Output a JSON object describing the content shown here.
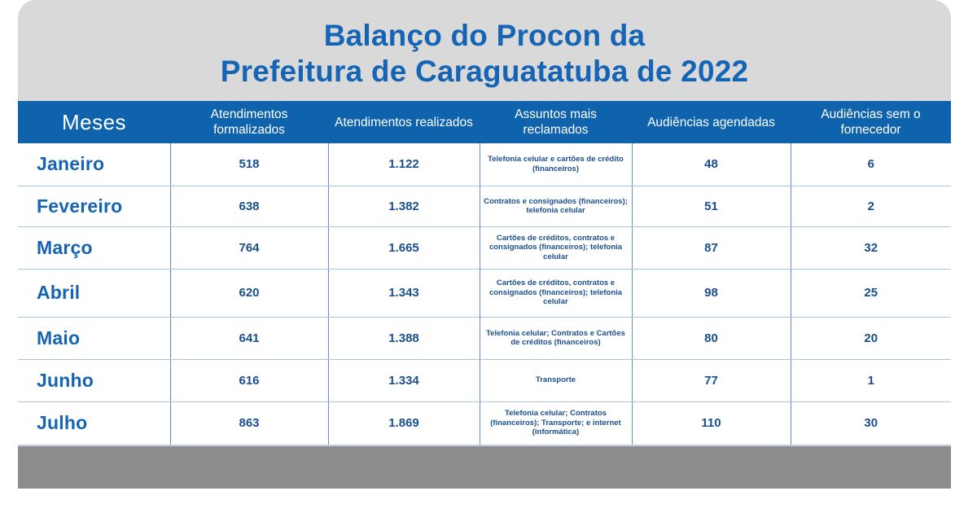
{
  "title": {
    "line1": "Balanço do Procon da",
    "line2": "Prefeitura de Caraguatatuba de 2022"
  },
  "chart_data": {
    "type": "table",
    "columns": [
      "Meses",
      "Atendimentos formalizados",
      "Atendimentos realizados",
      "Assuntos mais reclamados",
      "Audiências agendadas",
      "Audiências sem o fornecedor"
    ],
    "rows": [
      {
        "mes": "Janeiro",
        "formalizados": "518",
        "realizados": "1.122",
        "assuntos": "Telefonia celular e cartões de crédito (financeiros)",
        "agendadas": "48",
        "sem_fornecedor": "6"
      },
      {
        "mes": "Fevereiro",
        "formalizados": "638",
        "realizados": "1.382",
        "assuntos": "Contratos e consignados (financeiros); telefonia celular",
        "agendadas": "51",
        "sem_fornecedor": "2"
      },
      {
        "mes": "Março",
        "formalizados": "764",
        "realizados": "1.665",
        "assuntos": "Cartões de créditos, contratos e consignados (financeiros); telefonia celular",
        "agendadas": "87",
        "sem_fornecedor": "32"
      },
      {
        "mes": "Abril",
        "formalizados": "620",
        "realizados": "1.343",
        "assuntos": "Cartões de créditos, contratos e consignados (financeiros); telefonia celular",
        "agendadas": "98",
        "sem_fornecedor": "25"
      },
      {
        "mes": "Maio",
        "formalizados": "641",
        "realizados": "1.388",
        "assuntos": "Telefonia celular; Contratos e Cartões de créditos (financeiros)",
        "agendadas": "80",
        "sem_fornecedor": "20"
      },
      {
        "mes": "Junho",
        "formalizados": "616",
        "realizados": "1.334",
        "assuntos": "Transporte",
        "agendadas": "77",
        "sem_fornecedor": "1"
      },
      {
        "mes": "Julho",
        "formalizados": "863",
        "realizados": "1.869",
        "assuntos": "Telefonia celular; Contratos (financeiros); Transporte; e internet (informática)",
        "agendadas": "110",
        "sem_fornecedor": "30"
      }
    ]
  },
  "colors": {
    "title_blue": "#1565b4",
    "header_blue": "#0f63ad",
    "card_gray": "#d9d9d9",
    "footer_gray": "#8c8c8c"
  }
}
